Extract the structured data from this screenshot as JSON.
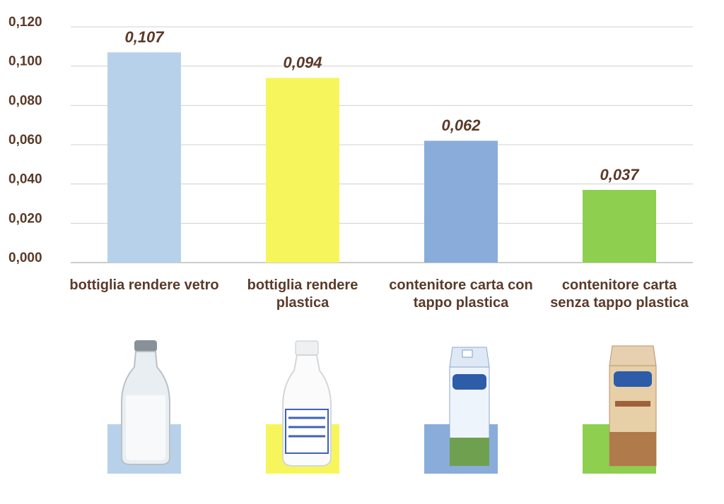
{
  "chart_data": {
    "type": "bar",
    "categories": [
      "bottiglia rendere vetro",
      "bottiglia rendere plastica",
      "contenitore carta con tappo plastica",
      "contenitore carta senza tappo plastica"
    ],
    "values": [
      0.107,
      0.094,
      0.062,
      0.037
    ],
    "value_labels": [
      "0,107",
      "0,094",
      "0,062",
      "0,037"
    ],
    "colors": [
      "#b8d1ea",
      "#f6f65c",
      "#89acdb",
      "#8ecf4f"
    ],
    "ylim": [
      0,
      0.12
    ],
    "yticks": [
      {
        "value": 0,
        "label": "0,000"
      },
      {
        "value": 0.02,
        "label": "0,020"
      },
      {
        "value": 0.04,
        "label": "0,040"
      },
      {
        "value": 0.06,
        "label": "0,060"
      },
      {
        "value": 0.08,
        "label": "0,080"
      },
      {
        "value": 0.1,
        "label": "0,100"
      },
      {
        "value": 0.12,
        "label": "0,120"
      }
    ],
    "grid": true
  }
}
